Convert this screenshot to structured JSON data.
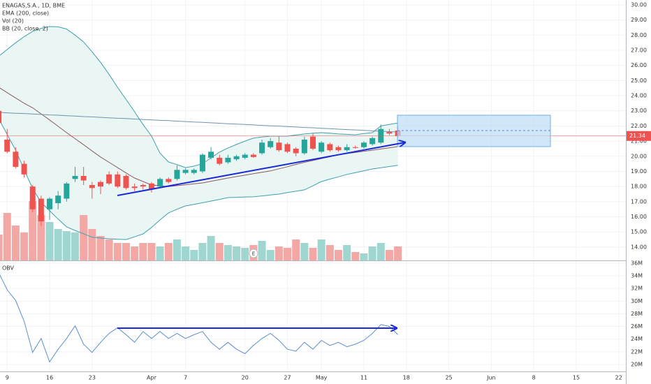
{
  "chart_data": [
    {
      "type": "candlestick",
      "title": "ENAGAS,S.A., 1D, BME",
      "categories": [
        null,
        "9",
        null,
        null,
        null,
        null,
        "16",
        null,
        null,
        null,
        null,
        "23",
        null,
        null,
        null,
        null,
        null,
        null,
        "Apr",
        null,
        null,
        null,
        "7",
        null,
        null,
        null,
        null,
        null,
        null,
        "20",
        null,
        null,
        null,
        null,
        "27",
        null,
        null,
        null,
        "May",
        null,
        null,
        null,
        null,
        "11",
        null,
        null,
        null,
        null,
        "18",
        null,
        null,
        null,
        null,
        "25",
        null,
        null,
        null,
        null,
        "Jun",
        null,
        null,
        null,
        null,
        "8",
        null,
        null,
        null,
        null,
        "15",
        null,
        null,
        null,
        null,
        "22"
      ],
      "open": [
        23.0,
        21.1,
        20.3,
        19.5,
        18.0,
        17.2,
        16.5,
        16.9,
        17.2,
        18.5,
        18.7,
        18.1,
        18.3,
        18.8,
        18.8,
        18.7,
        18.0,
        18.1,
        18.2,
        18.0,
        18.5,
        18.5,
        18.9,
        18.9,
        19.0,
        19.9,
        19.9,
        19.6,
        19.8,
        19.9,
        20.1,
        20.2,
        20.6,
        20.9,
        20.8,
        20.5,
        20.2,
        21.3,
        20.3,
        20.8,
        20.6,
        20.4,
        20.6,
        20.6,
        20.8,
        20.9,
        21.6,
        21.7,
        null,
        null,
        null,
        null,
        null,
        null,
        null,
        null,
        null,
        null,
        null,
        null,
        null,
        null,
        null,
        null,
        null,
        null,
        null,
        null,
        null,
        null,
        null,
        null,
        null,
        null
      ],
      "high": [
        23.1,
        21.8,
        20.6,
        19.7,
        18.1,
        17.4,
        17.3,
        17.7,
        18.3,
        19.3,
        19.3,
        18.3,
        18.4,
        19.0,
        19.0,
        18.8,
        18.2,
        18.2,
        18.3,
        18.6,
        18.6,
        19.4,
        19.2,
        19.2,
        20.2,
        20.6,
        20.1,
        20.1,
        20.1,
        20.2,
        20.2,
        21.1,
        21.2,
        21.3,
        20.9,
        20.6,
        21.3,
        21.5,
        21.0,
        20.9,
        20.7,
        20.8,
        20.7,
        21.0,
        21.3,
        22.1,
        21.8,
        22.0,
        null,
        null,
        null,
        null,
        null,
        null,
        null,
        null,
        null,
        null,
        null,
        null,
        null,
        null,
        null,
        null,
        null,
        null,
        null,
        null,
        null,
        null,
        null,
        null,
        null,
        null
      ],
      "low": [
        22.0,
        20.2,
        19.2,
        18.6,
        16.3,
        15.4,
        15.8,
        16.5,
        17.0,
        18.3,
        18.1,
        17.2,
        17.5,
        18.1,
        17.9,
        17.8,
        17.7,
        17.8,
        17.6,
        17.9,
        18.2,
        18.4,
        18.8,
        18.8,
        18.9,
        19.8,
        19.4,
        19.5,
        19.7,
        19.8,
        19.9,
        20.1,
        20.5,
        20.3,
        20.2,
        20.0,
        20.1,
        20.4,
        20.2,
        20.3,
        20.3,
        20.3,
        20.5,
        20.5,
        20.7,
        20.8,
        21.4,
        21.2,
        null,
        null,
        null,
        null,
        null,
        null,
        null,
        null,
        null,
        null,
        null,
        null,
        null,
        null,
        null,
        null,
        null,
        null,
        null,
        null,
        null,
        null,
        null,
        null,
        null,
        null
      ],
      "close": [
        22.2,
        20.3,
        19.3,
        18.8,
        16.5,
        15.7,
        17.2,
        17.4,
        18.2,
        18.7,
        18.4,
        17.9,
        18.0,
        18.2,
        18.0,
        17.9,
        17.9,
        18.0,
        17.8,
        18.5,
        18.3,
        19.1,
        19.1,
        19.1,
        20.1,
        20.3,
        19.5,
        19.9,
        20.0,
        20.1,
        19.95,
        20.9,
        21.0,
        20.4,
        20.3,
        20.2,
        21.1,
        20.5,
        20.9,
        20.4,
        20.4,
        20.6,
        20.55,
        20.9,
        21.2,
        21.8,
        21.5,
        21.34,
        null,
        null,
        null,
        null,
        null,
        null,
        null,
        null,
        null,
        null,
        null,
        null,
        null,
        null,
        null,
        null,
        null,
        null,
        null,
        null,
        null,
        null,
        null,
        null,
        null,
        null
      ],
      "up_color": "#26a69a",
      "down_color": "#ef5350",
      "volume": {
        "name": "Vol (20)",
        "up_color": "#9fd6cf",
        "down_color": "#f4a8a6",
        "values": [
          1850000,
          3400000,
          2500000,
          2000000,
          4250000,
          3250000,
          2750000,
          2250000,
          2100000,
          2000000,
          3250000,
          2250000,
          1750000,
          1500000,
          1250000,
          1250000,
          1000000,
          1250000,
          1250000,
          1000000,
          1250000,
          1500000,
          1000000,
          750000,
          1250000,
          1750000,
          1250000,
          1100000,
          1000000,
          900000,
          1100000,
          1400000,
          750000,
          1000000,
          900000,
          1500000,
          1250000,
          900000,
          1500000,
          1100000,
          750000,
          1100000,
          600000,
          500000,
          1000000,
          1250000,
          750000,
          1000000,
          null,
          null,
          null,
          null,
          null,
          null,
          null,
          null,
          null,
          null,
          null,
          null,
          null,
          null,
          null,
          null,
          null,
          null,
          null,
          null,
          null,
          null,
          null,
          null,
          null,
          null
        ]
      },
      "ema": {
        "name": "EMA (200, close)",
        "color": "#6f93ad",
        "values": [
          22.9,
          22.87,
          22.84,
          22.82,
          22.79,
          22.76,
          22.73,
          22.71,
          22.68,
          22.65,
          22.62,
          22.6,
          22.57,
          22.54,
          22.51,
          22.49,
          22.46,
          22.43,
          22.4,
          22.37,
          22.35,
          22.32,
          22.29,
          22.26,
          22.24,
          22.21,
          22.18,
          22.15,
          22.12,
          22.1,
          22.07,
          22.04,
          22.01,
          21.99,
          21.96,
          21.93,
          21.9,
          21.88,
          21.85,
          21.82,
          21.79,
          21.76,
          21.74,
          21.71,
          21.68,
          21.65,
          21.63,
          21.6,
          null,
          null,
          null,
          null,
          null,
          null,
          null,
          null,
          null,
          null,
          null,
          null,
          null,
          null,
          null,
          null,
          null,
          null,
          null,
          null,
          null,
          null,
          null,
          null,
          null,
          null
        ]
      },
      "bb": {
        "name": "BB (20, close, 2)",
        "color": "#3f9fb0",
        "basis_color": "#8b5a5f",
        "fill": "#eaf6f4",
        "upper": [
          26.6,
          27.05,
          27.5,
          27.9,
          28.25,
          28.45,
          28.57,
          28.55,
          28.4,
          28.0,
          27.55,
          26.9,
          26.2,
          25.4,
          24.55,
          23.75,
          22.94,
          22.1,
          21.33,
          20.2,
          19.62,
          19.45,
          19.25,
          19.35,
          19.5,
          19.9,
          20.27,
          20.55,
          20.78,
          21.0,
          21.2,
          21.27,
          21.33,
          21.33,
          21.33,
          21.4,
          21.47,
          21.52,
          21.56,
          21.52,
          21.47,
          21.45,
          21.42,
          21.5,
          21.56,
          22.0,
          22.1,
          22.2,
          null,
          null,
          null,
          null,
          null,
          null,
          null,
          null,
          null,
          null,
          null,
          null,
          null,
          null,
          null,
          null,
          null,
          null,
          null,
          null,
          null,
          null,
          null,
          null,
          null,
          null
        ],
        "basis": [
          24.56,
          24.2,
          23.85,
          23.5,
          23.2,
          22.8,
          22.4,
          21.98,
          21.56,
          21.16,
          20.76,
          20.35,
          19.95,
          19.6,
          19.25,
          18.9,
          18.56,
          18.33,
          18.1,
          18.05,
          18.0,
          18.06,
          18.12,
          18.18,
          18.24,
          18.35,
          18.45,
          18.56,
          18.66,
          18.75,
          18.85,
          18.94,
          19.03,
          19.17,
          19.31,
          19.46,
          19.6,
          19.72,
          19.85,
          19.97,
          20.1,
          20.18,
          20.25,
          20.33,
          20.4,
          20.48,
          20.56,
          20.64,
          null,
          null,
          null,
          null,
          null,
          null,
          null,
          null,
          null,
          null,
          null,
          null,
          null,
          null,
          null,
          null,
          null,
          null,
          null,
          null,
          null,
          null,
          null,
          null,
          null,
          null
        ],
        "lower": [
          22.48,
          21.45,
          20.4,
          19.1,
          17.87,
          16.95,
          16.4,
          15.85,
          15.34,
          15.1,
          14.88,
          14.65,
          14.6,
          14.55,
          14.52,
          14.5,
          14.68,
          14.87,
          15.3,
          15.8,
          16.26,
          16.5,
          16.72,
          16.82,
          16.93,
          17.04,
          17.15,
          17.27,
          17.29,
          17.31,
          17.32,
          17.38,
          17.44,
          17.5,
          17.6,
          17.69,
          17.78,
          18.05,
          18.33,
          18.49,
          18.64,
          18.8,
          18.92,
          19.04,
          19.16,
          19.24,
          19.32,
          19.4,
          null,
          null,
          null,
          null,
          null,
          null,
          null,
          null,
          null,
          null,
          null,
          null,
          null,
          null,
          null,
          null,
          null,
          null,
          null,
          null,
          null,
          null,
          null,
          null,
          null,
          null
        ]
      },
      "event": "E",
      "ylim": [
        13.12,
        30.32
      ],
      "yticks": [
        {
          "value": 14,
          "label": "14.00"
        },
        {
          "value": 15,
          "label": "15.00"
        },
        {
          "value": 16,
          "label": "16.00"
        },
        {
          "value": 17,
          "label": "17.00"
        },
        {
          "value": 18,
          "label": "18.00"
        },
        {
          "value": 19,
          "label": "19.00"
        },
        {
          "value": 20,
          "label": "20.00"
        },
        {
          "value": 21,
          "label": "21.00"
        },
        {
          "value": 22,
          "label": "22.00"
        },
        {
          "value": 23,
          "label": "23.00"
        },
        {
          "value": 24,
          "label": "24.00"
        },
        {
          "value": 25,
          "label": "25.00"
        },
        {
          "value": 26,
          "label": "26.00"
        },
        {
          "value": 27,
          "label": "27.00"
        },
        {
          "value": 28,
          "label": "28.00"
        },
        {
          "value": 29,
          "label": "29.00"
        },
        {
          "value": 30,
          "label": "30.00"
        }
      ],
      "grid": true
    },
    {
      "type": "line",
      "title": "OBV",
      "color": "#5b8fd0",
      "values": [
        34500000,
        31800000,
        30100000,
        26800000,
        21900000,
        24100000,
        20400000,
        22400000,
        24100000,
        26100000,
        23200000,
        21900000,
        23500000,
        24900000,
        25800000,
        24700000,
        23500000,
        25200000,
        24100000,
        25200000,
        24100000,
        24900000,
        24100000,
        24700000,
        25200000,
        23500000,
        22400000,
        23500000,
        22400000,
        21700000,
        23000000,
        24100000,
        24900000,
        23800000,
        22400000,
        22100000,
        23500000,
        22400000,
        23800000,
        23000000,
        23500000,
        22800000,
        23200000,
        23800000,
        24900000,
        26300000,
        26000000,
        24700000
      ],
      "ylim": [
        18900000,
        36200000
      ],
      "yticks": [
        {
          "value": 20000000,
          "label": "20M"
        },
        {
          "value": 22000000,
          "label": "22M"
        },
        {
          "value": 24000000,
          "label": "24M"
        },
        {
          "value": 26000000,
          "label": "26M"
        },
        {
          "value": 28000000,
          "label": "28M"
        },
        {
          "value": 30000000,
          "label": "30M"
        },
        {
          "value": 32000000,
          "label": "32M"
        },
        {
          "value": 34000000,
          "label": "34M"
        },
        {
          "value": 36000000,
          "label": "36M"
        }
      ],
      "grid": true
    }
  ]
}
